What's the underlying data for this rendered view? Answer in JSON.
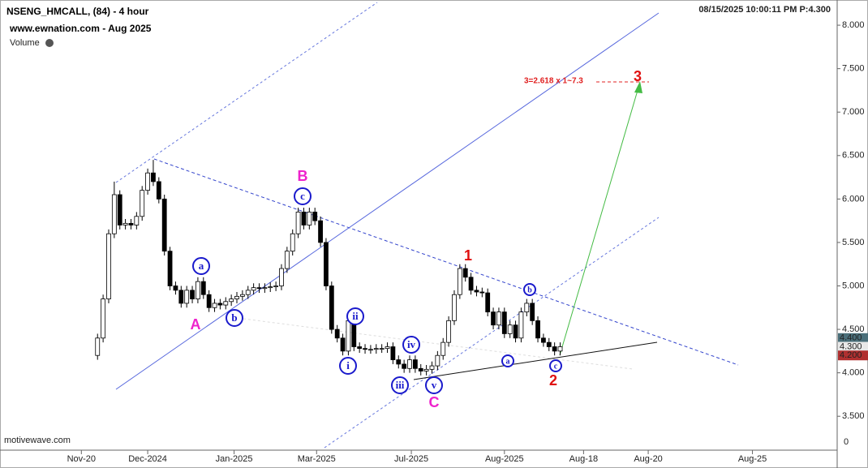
{
  "chart_data": {
    "type": "candlestick",
    "title": "NSENG_HMCALL, (84) - 4 hour",
    "subtitle": "www.ewnation.com  - Aug 2025",
    "indicator": "Volume",
    "timestamp": "08/15/2025 10:00:11 PM  P:4.300",
    "source": "motivewave.com",
    "volume_axis_label": "0",
    "target_label": "3=2.618 x 1~7.3",
    "wave_labels": [
      "A",
      "B",
      "C",
      "1",
      "2",
      "3"
    ],
    "circle_labels": [
      "a",
      "b",
      "c",
      "i",
      "ii",
      "iii",
      "iv",
      "v",
      "a",
      "b",
      "c"
    ],
    "xlim": [
      -17.5,
      132.7
    ],
    "xticks": [
      {
        "value": -2.9,
        "label": "Nov-20"
      },
      {
        "value": 9,
        "label": "Dec-2024"
      },
      {
        "value": 24.5,
        "label": "Jan-2025"
      },
      {
        "value": 39.3,
        "label": "Mar-2025"
      },
      {
        "value": 56.3,
        "label": "Jul-2025"
      },
      {
        "value": 73,
        "label": "Aug-2025"
      },
      {
        "value": 87.2,
        "label": "Aug-18"
      },
      {
        "value": 98.8,
        "label": "Aug-20"
      },
      {
        "value": 117.5,
        "label": "Aug-25"
      }
    ],
    "ylim": [
      3.11,
      8.29
    ],
    "yticks": [
      {
        "value": 8,
        "label": "8.000"
      },
      {
        "value": 7.5,
        "label": "7.500"
      },
      {
        "value": 7,
        "label": "7.000"
      },
      {
        "value": 6.5,
        "label": "6.500"
      },
      {
        "value": 6,
        "label": "6.000"
      },
      {
        "value": 5.5,
        "label": "5.500"
      },
      {
        "value": 5,
        "label": "5.000"
      },
      {
        "value": 4.5,
        "label": "4.500"
      },
      {
        "value": 4,
        "label": "4.000"
      },
      {
        "value": 3.5,
        "label": "3.500"
      }
    ],
    "price_markers": [
      {
        "value": 4.4,
        "label": "4.400",
        "color": "#4a6f7a"
      },
      {
        "value": 4.3,
        "label": "4.300",
        "color": "#e8e8e8"
      },
      {
        "value": 4.2,
        "label": "4.200",
        "color": "#b03030"
      }
    ],
    "open": [
      4.2,
      4.4,
      4.85,
      5.6,
      6.05,
      5.7,
      5.72,
      5.7,
      5.8,
      6.1,
      6.3,
      6.2,
      6.0,
      5.4,
      5.0,
      4.95,
      4.8,
      4.95,
      4.85,
      5.05,
      4.9,
      4.75,
      4.8,
      4.78,
      4.82,
      4.85,
      4.88,
      4.9,
      4.95,
      4.98,
      4.97,
      4.98,
      4.99,
      5.0,
      5.2,
      5.4,
      5.6,
      5.85,
      5.7,
      5.85,
      5.75,
      5.5,
      5.0,
      4.5,
      4.4,
      4.25,
      4.6,
      4.3,
      4.28,
      4.27,
      4.27,
      4.28,
      4.28,
      4.3,
      4.15,
      4.1,
      4.05,
      4.15,
      4.05,
      4.02,
      4.04,
      4.08,
      4.2,
      4.35,
      4.6,
      4.9,
      5.2,
      5.1,
      4.95,
      4.93,
      4.92,
      4.7,
      4.55,
      4.7,
      4.45,
      4.55,
      4.4,
      4.7,
      4.8,
      4.6,
      4.4,
      4.35,
      4.3,
      4.25
    ],
    "high": [
      4.45,
      4.9,
      5.65,
      6.2,
      6.1,
      5.77,
      5.77,
      5.85,
      6.15,
      6.35,
      6.45,
      6.25,
      6.05,
      5.45,
      5.05,
      5.0,
      5.0,
      5.0,
      5.1,
      5.1,
      4.95,
      4.85,
      4.85,
      4.87,
      4.9,
      4.93,
      4.95,
      5.0,
      5.03,
      5.03,
      5.03,
      5.04,
      5.05,
      5.25,
      5.45,
      5.65,
      5.9,
      5.9,
      5.9,
      5.9,
      5.8,
      5.55,
      5.05,
      4.55,
      4.45,
      4.65,
      4.65,
      4.35,
      4.33,
      4.32,
      4.33,
      4.33,
      4.35,
      4.35,
      4.2,
      4.15,
      4.2,
      4.2,
      4.1,
      4.09,
      4.13,
      4.25,
      4.4,
      4.65,
      4.95,
      5.25,
      5.25,
      5.15,
      5.0,
      4.98,
      4.97,
      4.75,
      4.75,
      4.75,
      4.6,
      4.6,
      4.75,
      4.85,
      4.85,
      4.65,
      4.45,
      4.4,
      4.35,
      4.35
    ],
    "low": [
      4.15,
      4.35,
      4.8,
      5.55,
      5.65,
      5.65,
      5.65,
      5.65,
      5.75,
      6.05,
      6.15,
      5.95,
      5.35,
      4.95,
      4.9,
      4.75,
      4.75,
      4.8,
      4.8,
      4.85,
      4.7,
      4.7,
      4.73,
      4.73,
      4.77,
      4.8,
      4.83,
      4.85,
      4.9,
      4.92,
      4.92,
      4.93,
      4.94,
      4.95,
      5.15,
      5.35,
      5.55,
      5.65,
      5.65,
      5.7,
      5.45,
      4.95,
      4.45,
      4.35,
      4.2,
      4.2,
      4.25,
      4.23,
      4.22,
      4.22,
      4.22,
      4.23,
      4.23,
      4.1,
      4.05,
      4.0,
      4.0,
      4.0,
      3.97,
      3.97,
      3.99,
      4.03,
      4.15,
      4.3,
      4.55,
      4.85,
      5.05,
      4.9,
      4.88,
      4.87,
      4.65,
      4.5,
      4.5,
      4.4,
      4.4,
      4.35,
      4.35,
      4.65,
      4.55,
      4.35,
      4.3,
      4.25,
      4.2,
      4.2
    ],
    "close": [
      4.4,
      4.85,
      5.6,
      6.05,
      5.7,
      5.72,
      5.7,
      5.8,
      6.1,
      6.3,
      6.2,
      6.0,
      5.4,
      5.0,
      4.95,
      4.8,
      4.95,
      4.85,
      5.05,
      4.9,
      4.75,
      4.8,
      4.78,
      4.82,
      4.85,
      4.88,
      4.9,
      4.95,
      4.98,
      4.97,
      4.98,
      4.99,
      5.0,
      5.2,
      5.4,
      5.6,
      5.85,
      5.7,
      5.85,
      5.75,
      5.5,
      5.0,
      4.5,
      4.4,
      4.25,
      4.6,
      4.3,
      4.28,
      4.27,
      4.27,
      4.28,
      4.28,
      4.3,
      4.15,
      4.1,
      4.05,
      4.15,
      4.05,
      4.02,
      4.04,
      4.08,
      4.2,
      4.35,
      4.6,
      4.9,
      5.2,
      5.1,
      4.95,
      4.93,
      4.92,
      4.7,
      4.55,
      4.7,
      4.45,
      4.55,
      4.4,
      4.7,
      4.8,
      4.6,
      4.4,
      4.35,
      4.3,
      4.25,
      4.3
    ]
  }
}
